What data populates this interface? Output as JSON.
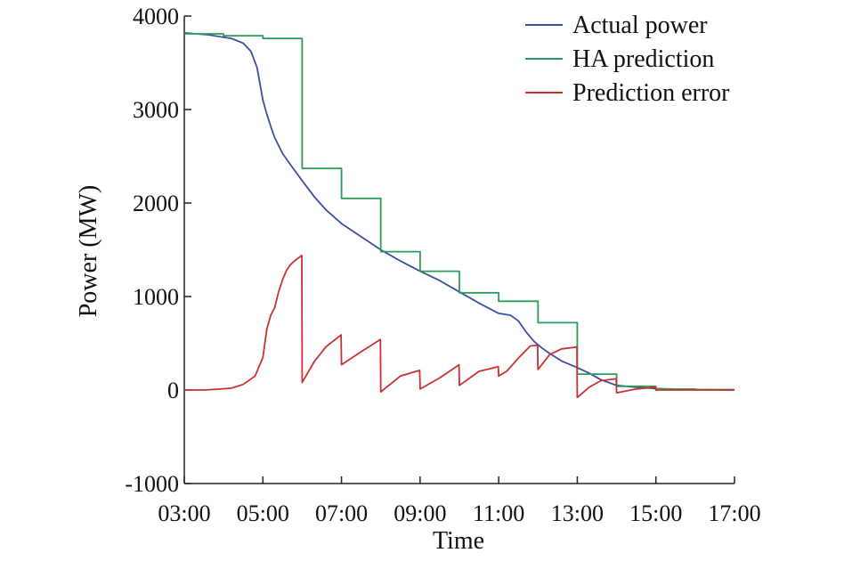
{
  "chart_data": {
    "type": "line",
    "title": "",
    "xlabel": "Time",
    "ylabel": "Power (MW)",
    "x_ticks": [
      {
        "hour": 3,
        "label": "03:00"
      },
      {
        "hour": 5,
        "label": "05:00"
      },
      {
        "hour": 7,
        "label": "07:00"
      },
      {
        "hour": 9,
        "label": "09:00"
      },
      {
        "hour": 11,
        "label": "11:00"
      },
      {
        "hour": 13,
        "label": "13:00"
      },
      {
        "hour": 15,
        "label": "15:00"
      },
      {
        "hour": 17,
        "label": "17:00"
      }
    ],
    "y_ticks": [
      {
        "value": -1000,
        "label": "-1000"
      },
      {
        "value": 0,
        "label": "0"
      },
      {
        "value": 1000,
        "label": "1000"
      },
      {
        "value": 2000,
        "label": "2000"
      },
      {
        "value": 3000,
        "label": "3000"
      },
      {
        "value": 4000,
        "label": "4000"
      }
    ],
    "xlim": [
      3,
      17
    ],
    "ylim": [
      -1000,
      4000
    ],
    "grid": false,
    "legend_position": "top-right",
    "series": [
      {
        "name": "Actual power",
        "color": "#3a4fa0",
        "line": "solid",
        "x": [
          3.0,
          3.3,
          3.6,
          3.9,
          4.2,
          4.5,
          4.7,
          4.85,
          5.0,
          5.1,
          5.2,
          5.3,
          5.5,
          5.7,
          6.0,
          6.3,
          6.6,
          7.0,
          7.5,
          8.0,
          8.5,
          9.0,
          9.5,
          10.0,
          10.5,
          11.0,
          11.3,
          11.5,
          11.7,
          11.9,
          12.1,
          12.3,
          12.6,
          13.0,
          13.3,
          13.6,
          14.0,
          14.5,
          15.0,
          16.0,
          17.0
        ],
        "y": [
          3820,
          3810,
          3800,
          3780,
          3760,
          3710,
          3620,
          3450,
          3100,
          2950,
          2820,
          2700,
          2530,
          2410,
          2240,
          2070,
          1930,
          1780,
          1640,
          1500,
          1380,
          1270,
          1170,
          1050,
          930,
          820,
          800,
          740,
          620,
          520,
          450,
          390,
          310,
          240,
          180,
          110,
          50,
          30,
          15,
          5,
          0
        ]
      },
      {
        "name": "HA prediction",
        "color": "#2e9a5a",
        "line": "step",
        "x": [
          3,
          4,
          5,
          6,
          7,
          8,
          9,
          10,
          11,
          12,
          13,
          14,
          15,
          16,
          17
        ],
        "y": [
          3810,
          3790,
          3760,
          2370,
          2050,
          1480,
          1270,
          1040,
          950,
          720,
          170,
          40,
          10,
          5,
          5
        ]
      },
      {
        "name": "Prediction error",
        "color": "#cc3030",
        "line": "solid",
        "x": [
          3.0,
          3.5,
          3.9,
          4.2,
          4.5,
          4.8,
          5.0,
          5.1,
          5.2,
          5.3,
          5.4,
          5.5,
          5.6,
          5.7,
          5.8,
          5.99,
          6.0,
          6.3,
          6.6,
          6.99,
          7.0,
          7.5,
          7.99,
          8.0,
          8.5,
          8.99,
          9.0,
          9.5,
          9.99,
          10.0,
          10.5,
          10.99,
          11.0,
          11.2,
          11.5,
          11.8,
          11.99,
          12.0,
          12.3,
          12.6,
          12.99,
          13.0,
          13.3,
          13.6,
          13.99,
          14.0,
          14.5,
          14.99,
          15.0,
          16.0,
          17.0
        ],
        "y": [
          0,
          0,
          10,
          20,
          60,
          150,
          350,
          650,
          800,
          880,
          1050,
          1180,
          1280,
          1340,
          1380,
          1440,
          80,
          300,
          460,
          590,
          270,
          410,
          540,
          -20,
          150,
          210,
          10,
          130,
          270,
          50,
          200,
          250,
          150,
          200,
          340,
          470,
          480,
          220,
          380,
          440,
          460,
          -80,
          30,
          100,
          120,
          -30,
          10,
          30,
          0,
          0,
          0
        ]
      }
    ]
  }
}
